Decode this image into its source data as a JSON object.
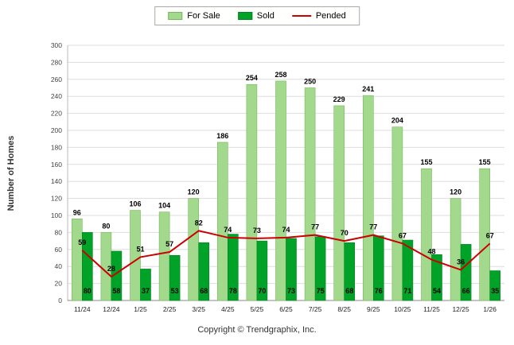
{
  "legend": {
    "for_sale_label": "For Sale",
    "sold_label": "Sold",
    "pended_label": "Pended"
  },
  "ylabel": "Number of Homes",
  "footer": "Copyright © Trendgraphix, Inc.",
  "colors": {
    "for_sale": "#A3D98C",
    "for_sale_border": "#76B85C",
    "sold": "#00A327",
    "sold_border": "#00841F",
    "pended": "#CC0000",
    "grid": "#DDDDDD",
    "axis": "#888888",
    "axis_left": "#BBBBBB",
    "tick_text": "#444444",
    "category_text": "#222222",
    "value_text": "#000000"
  },
  "chart_data": {
    "type": "bar",
    "title": "",
    "xlabel": "",
    "ylabel": "Number of Homes",
    "ylim": [
      0,
      300
    ],
    "ytick_interval": 20,
    "grid": true,
    "legend_position": "top",
    "categories": [
      "11/24",
      "12/24",
      "1/25",
      "2/25",
      "3/25",
      "4/25",
      "5/25",
      "6/25",
      "7/25",
      "8/25",
      "9/25",
      "10/25",
      "11/25",
      "12/25",
      "1/26"
    ],
    "series": [
      {
        "name": "For Sale",
        "type": "bar",
        "values": [
          96,
          80,
          106,
          104,
          120,
          186,
          254,
          258,
          250,
          229,
          241,
          204,
          155,
          120,
          155
        ]
      },
      {
        "name": "Sold",
        "type": "bar",
        "values": [
          80,
          58,
          37,
          53,
          68,
          78,
          70,
          73,
          75,
          68,
          76,
          71,
          54,
          66,
          35
        ]
      },
      {
        "name": "Pended",
        "type": "line",
        "values": [
          59,
          28,
          51,
          57,
          82,
          74,
          73,
          74,
          77,
          70,
          77,
          67,
          48,
          36,
          67
        ]
      }
    ]
  }
}
